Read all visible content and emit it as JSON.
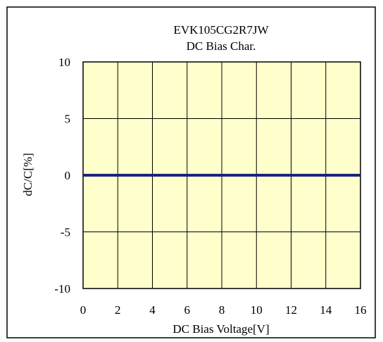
{
  "chart_data": {
    "type": "line",
    "title": "EVK105CG2R7JW",
    "subtitle": "DC Bias Char.",
    "xlabel": "DC Bias Voltage[V]",
    "ylabel": "dC/C[%]",
    "xlim": [
      0,
      16
    ],
    "ylim": [
      -10,
      10
    ],
    "xticks": [
      0,
      2,
      4,
      6,
      8,
      10,
      12,
      14,
      16
    ],
    "yticks": [
      10,
      5,
      0,
      -5,
      -10
    ],
    "grid": true,
    "plot_background": "#ffffcc",
    "series": [
      {
        "color": "#1a237e",
        "x": [
          0,
          2,
          4,
          6,
          8,
          10,
          12,
          14,
          16
        ],
        "y": [
          0,
          0,
          0,
          0,
          0,
          0,
          0,
          0,
          0
        ]
      }
    ]
  }
}
